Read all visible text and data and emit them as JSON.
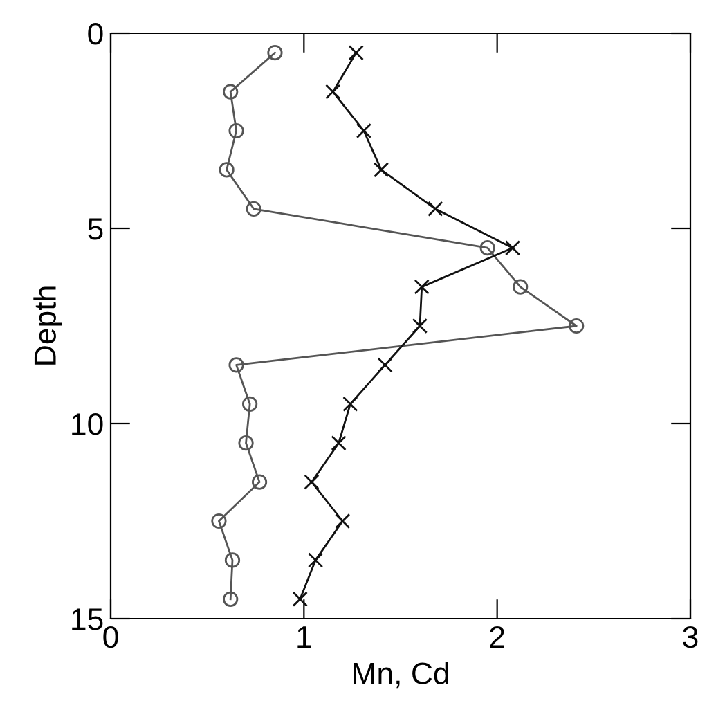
{
  "chart_data": {
    "type": "line",
    "xlabel": "Mn, Cd",
    "ylabel": "Depth",
    "xlim": [
      0,
      3
    ],
    "xticks": [
      0,
      1,
      2,
      3
    ],
    "ylim": [
      15,
      0
    ],
    "yticks": [
      0,
      5,
      10,
      15
    ],
    "grid": false,
    "legend": false,
    "series": [
      {
        "color": "#555555",
        "marker": "circle",
        "x": [
          0.85,
          0.62,
          0.65,
          0.6,
          0.74,
          1.95,
          2.12,
          2.41,
          0.65,
          0.72,
          0.7,
          0.77,
          0.56,
          0.63,
          0.62
        ],
        "values": [
          0.5,
          1.5,
          2.5,
          3.5,
          4.5,
          5.5,
          6.5,
          7.5,
          8.5,
          9.5,
          10.5,
          11.5,
          12.5,
          13.5,
          14.5
        ]
      },
      {
        "color": "#111111",
        "marker": "cross",
        "x": [
          1.27,
          1.15,
          1.31,
          1.4,
          1.68,
          2.08,
          1.61,
          1.6,
          1.42,
          1.24,
          1.18,
          1.04,
          1.2,
          1.06,
          0.98
        ],
        "values": [
          0.5,
          1.5,
          2.5,
          3.5,
          4.5,
          5.5,
          6.5,
          7.5,
          8.5,
          9.5,
          10.5,
          11.5,
          12.5,
          13.5,
          14.5
        ]
      }
    ]
  }
}
